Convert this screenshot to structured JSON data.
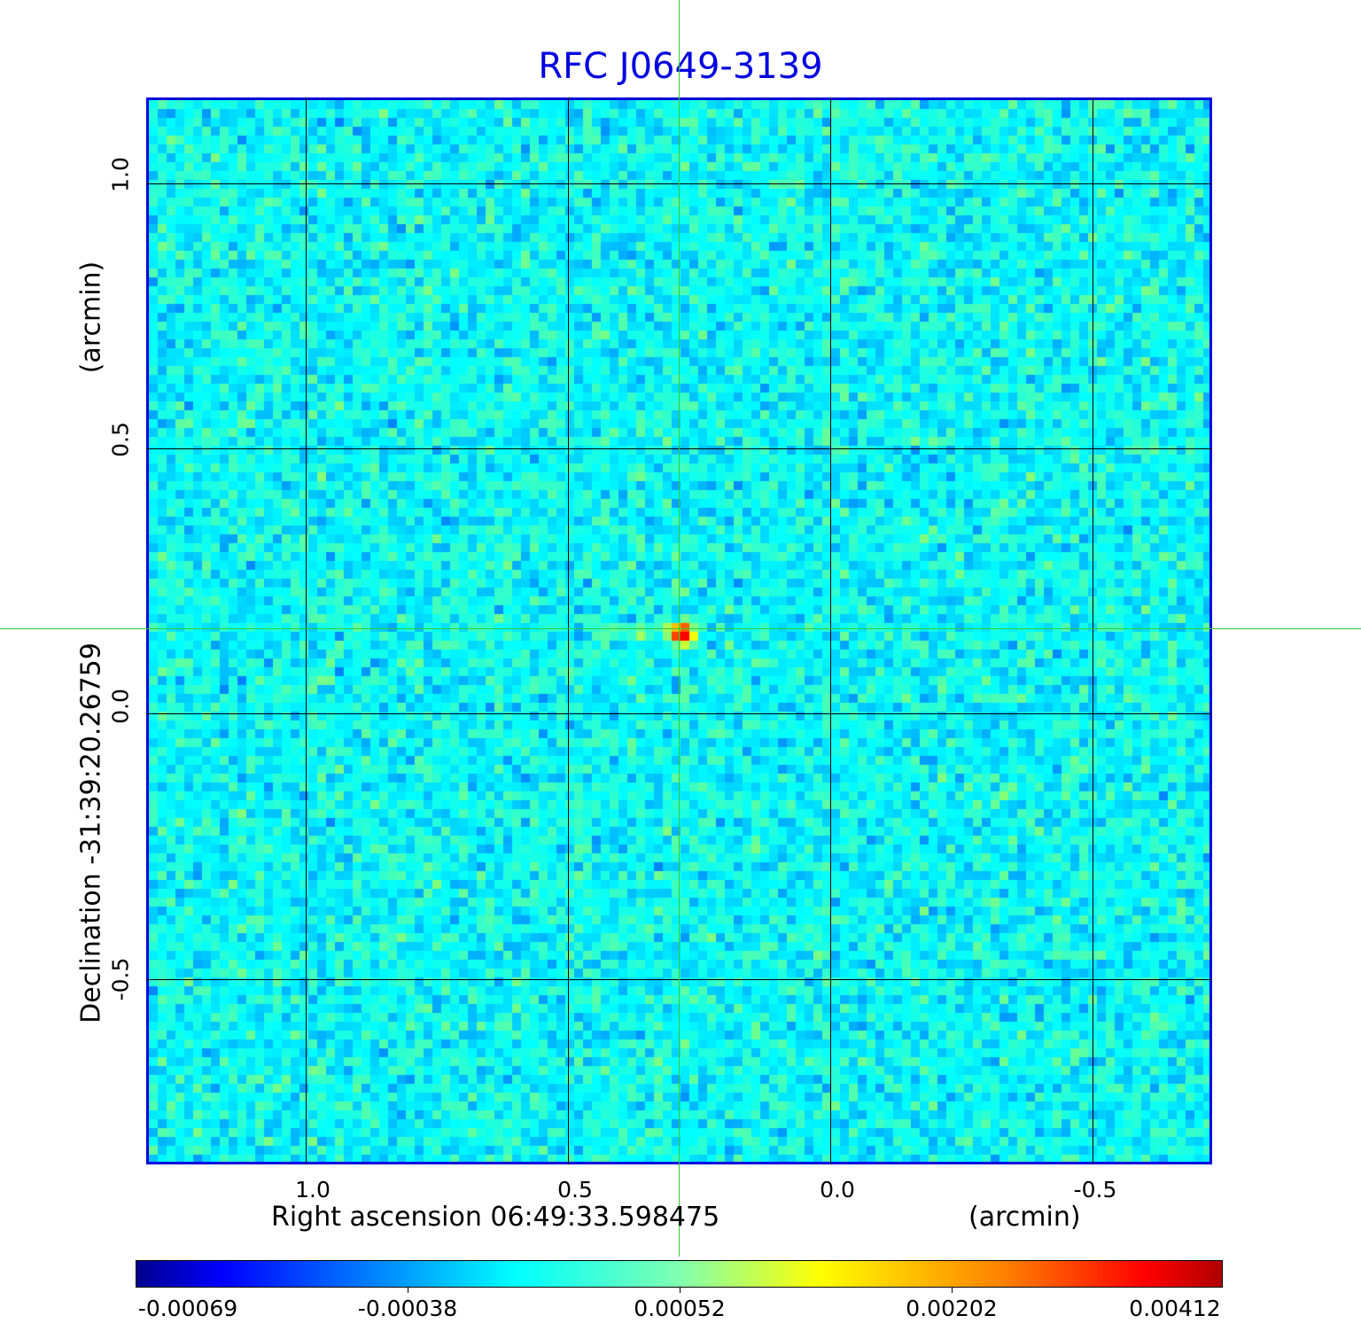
{
  "chart_data": {
    "type": "heatmap",
    "title": "RFC J0649-3139",
    "xlabel": "Right ascension  06:49:33.598475",
    "xunit": "(arcmin)",
    "ylabel": "Declination  -31:39:20.26759",
    "yunit": "(arcmin)",
    "x_ticks": [
      "1.0",
      "0.5",
      "0.0",
      "-0.5"
    ],
    "y_ticks": [
      "1.0",
      "0.5",
      "0.0",
      "-0.5"
    ],
    "xlim": [
      1.3,
      -0.73
    ],
    "ylim": [
      -0.85,
      1.17
    ],
    "grid": true,
    "colormap": "jet",
    "colorbar_ticks": [
      "-0.00069",
      "-0.00038",
      "0.00052",
      "0.00202",
      "0.00412"
    ],
    "colorbar_range": [
      -0.00069,
      0.00412
    ],
    "peak_position_arcmin": [
      0.29,
      0.16
    ],
    "crosshair_color": "#33cc33",
    "title_color": "#0000e0"
  }
}
